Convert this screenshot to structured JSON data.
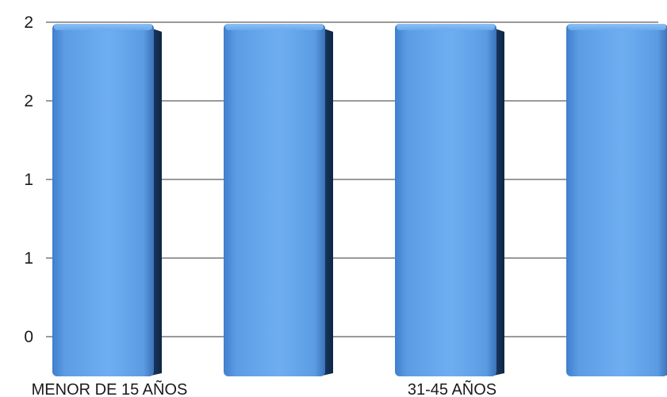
{
  "chart_data": {
    "type": "bar",
    "title": "",
    "xlabel": "",
    "ylabel": "",
    "categories": [
      "MENOR DE 15 AÑOS",
      "",
      "31-45 AÑOS",
      ""
    ],
    "values": [
      2,
      2,
      2,
      2
    ],
    "ylim": [
      0,
      2
    ],
    "y_tick_labels": [
      "0",
      "1",
      "1",
      "2",
      "2"
    ],
    "grid": true,
    "legend": "none",
    "bar_color": "#5b9be0"
  }
}
